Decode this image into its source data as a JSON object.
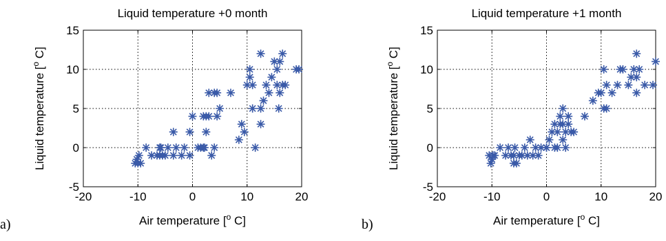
{
  "panel_labels": [
    "a)",
    "b)"
  ],
  "chart_data": [
    {
      "type": "scatter",
      "title": "Liquid temperature +0 month",
      "xlabel": "Air temperature [° C]",
      "ylabel": "Liquid temperature [° C]",
      "xlim": [
        -20,
        20
      ],
      "ylim": [
        -5,
        15
      ],
      "xticks": [
        -20,
        -10,
        0,
        10,
        20
      ],
      "yticks": [
        -5,
        0,
        5,
        10,
        15
      ],
      "grid": true,
      "marker": "*",
      "color": "#3a5aa8",
      "series": [
        {
          "x": [
            -10.5,
            -10,
            -10.2,
            -9.8,
            -9.5,
            -8.5,
            -7.5,
            -6.5,
            -6,
            -6,
            -5.8,
            -5.5,
            -5,
            -4.5,
            -3.5,
            -3.5,
            -3,
            -2,
            -1.5,
            -0.5,
            -0.5,
            0,
            1,
            1.5,
            2,
            2,
            2.2,
            2.5,
            2.5,
            3,
            3,
            3.5,
            4,
            4,
            4.5,
            4.5,
            5,
            7,
            8.5,
            9,
            9.5,
            10,
            10.5,
            10.5,
            11,
            11,
            11.5,
            12.5,
            12.5,
            12.5,
            13,
            13.5,
            14,
            14.5,
            15,
            15.5,
            15.5,
            15.8,
            16,
            16,
            16.5,
            16.5,
            17,
            19,
            19.5
          ],
          "y": [
            -2,
            -2,
            -1.5,
            -1,
            -2,
            0,
            -1,
            -1,
            -1,
            0,
            0,
            -1,
            -1,
            0,
            -1,
            2,
            0,
            -1,
            0,
            -1,
            2,
            4,
            0,
            0,
            0,
            4,
            0,
            4,
            2,
            4,
            7,
            -1,
            7,
            0,
            4,
            7,
            5,
            7,
            1,
            3,
            2,
            8,
            9,
            10,
            5,
            8,
            0,
            12,
            3,
            5,
            6,
            8,
            7,
            9,
            11,
            10,
            8,
            5,
            7,
            11,
            12,
            8,
            8,
            10,
            10
          ]
        }
      ]
    },
    {
      "type": "scatter",
      "title": "Liquid temperature +1 month",
      "xlabel": "Air temperature [° C]",
      "ylabel": "Liquid temperature [° C]",
      "xlim": [
        -20,
        20
      ],
      "ylim": [
        -5,
        15
      ],
      "xticks": [
        -20,
        -10,
        0,
        10,
        20
      ],
      "yticks": [
        -5,
        0,
        5,
        10,
        15
      ],
      "grid": true,
      "marker": "*",
      "color": "#3a5aa8",
      "series": [
        {
          "x": [
            -10.5,
            -10.2,
            -10,
            -9.8,
            -9.5,
            -8.5,
            -7.5,
            -7,
            -6.5,
            -6,
            -6,
            -5.8,
            -5.5,
            -5,
            -4.5,
            -4,
            -3.5,
            -3,
            -2.5,
            -2,
            -1.5,
            -1,
            0,
            0,
            0.5,
            1,
            1.5,
            1.5,
            2,
            2,
            2.5,
            2.5,
            3,
            3,
            3,
            3.5,
            3.5,
            4,
            4,
            4.5,
            5,
            7,
            8.5,
            9.5,
            10,
            10.5,
            10.5,
            11,
            11,
            12,
            13,
            13.5,
            14,
            15,
            15.5,
            16,
            16.5,
            16.5,
            16.5,
            17,
            18,
            19.5,
            20
          ],
          "y": [
            -1,
            -2,
            -1.5,
            -1,
            -1,
            0,
            -1,
            0,
            -1,
            -2,
            -1,
            0,
            -2,
            -1,
            -1,
            0,
            -1,
            1,
            -1,
            0,
            -1,
            0,
            0,
            0,
            1,
            2,
            3,
            0,
            0,
            2,
            4,
            3,
            5,
            1,
            3,
            2,
            0,
            4,
            3,
            2,
            2,
            4,
            6,
            7,
            7,
            5,
            10,
            5,
            8,
            7,
            8,
            10,
            10,
            8,
            9,
            10,
            12,
            9,
            7,
            10,
            8,
            8,
            11
          ]
        }
      ]
    }
  ]
}
